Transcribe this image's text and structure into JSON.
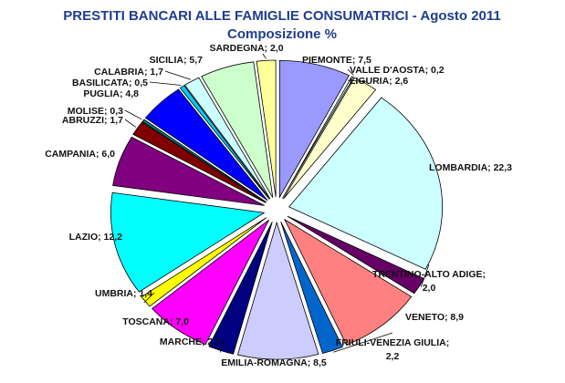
{
  "chart_data": {
    "type": "pie",
    "title": "PRESTITI BANCARI ALLE FAMIGLIE CONSUMATRICI  - Agosto 2011",
    "subtitle": "Composizione %",
    "legend": "none",
    "slices": [
      {
        "label": "PIEMONTE; 7,5",
        "name": "PIEMONTE",
        "value": 7.5,
        "color": "#9999ff"
      },
      {
        "label": "VALLE D'AOSTA; 0,2",
        "name": "VALLE D'AOSTA",
        "value": 0.2,
        "color": "#ccffff"
      },
      {
        "label": "LIGURIA; 2,6",
        "name": "LIGURIA",
        "value": 2.6,
        "color": "#ffffcc"
      },
      {
        "label": "LOMBARDIA; 22,3",
        "name": "LOMBARDIA",
        "value": 22.3,
        "color": "#ccffff"
      },
      {
        "label": "TRENTINO-ALTO ADIGE;\n2,0",
        "name": "TRENTINO-ALTO ADIGE",
        "value": 2.0,
        "color": "#660066"
      },
      {
        "label": "VENETO; 8,9",
        "name": "VENETO",
        "value": 8.9,
        "color": "#ff8080"
      },
      {
        "label": "FRIULI-VENEZIA GIULIA;\n2,2",
        "name": "FRIULI-VENEZIA GIULIA",
        "value": 2.2,
        "color": "#0066cc"
      },
      {
        "label": "EMILIA-ROMAGNA; 8,5",
        "name": "EMILIA-ROMAGNA",
        "value": 8.5,
        "color": "#ccccff"
      },
      {
        "label": "MARCHE; 2,7",
        "name": "MARCHE",
        "value": 2.7,
        "color": "#000080"
      },
      {
        "label": "TOSCANA; 7,0",
        "name": "TOSCANA",
        "value": 7.0,
        "color": "#ff00ff"
      },
      {
        "label": "UMBRIA; 1,4",
        "name": "UMBRIA",
        "value": 1.4,
        "color": "#ffff00"
      },
      {
        "label": "LAZIO; 12,2",
        "name": "LAZIO",
        "value": 12.2,
        "color": "#00ffff"
      },
      {
        "label": "CAMPANIA; 6,0",
        "name": "CAMPANIA",
        "value": 6.0,
        "color": "#800080"
      },
      {
        "label": "ABRUZZI; 1,7",
        "name": "ABRUZZI",
        "value": 1.7,
        "color": "#800000"
      },
      {
        "label": "MOLISE; 0,3",
        "name": "MOLISE",
        "value": 0.3,
        "color": "#008080"
      },
      {
        "label": "PUGLIA; 4,8",
        "name": "PUGLIA",
        "value": 4.8,
        "color": "#0000ff"
      },
      {
        "label": "BASILICATA; 0,5",
        "name": "BASILICATA",
        "value": 0.5,
        "color": "#00ccff"
      },
      {
        "label": "CALABRIA; 1,7",
        "name": "CALABRIA",
        "value": 1.7,
        "color": "#ccffff"
      },
      {
        "label": "SICILIA; 5,7",
        "name": "SICILIA",
        "value": 5.7,
        "color": "#ccffcc"
      },
      {
        "label": "SARDEGNA; 2,0",
        "name": "SARDEGNA",
        "value": 2.0,
        "color": "#ffff99"
      }
    ]
  }
}
